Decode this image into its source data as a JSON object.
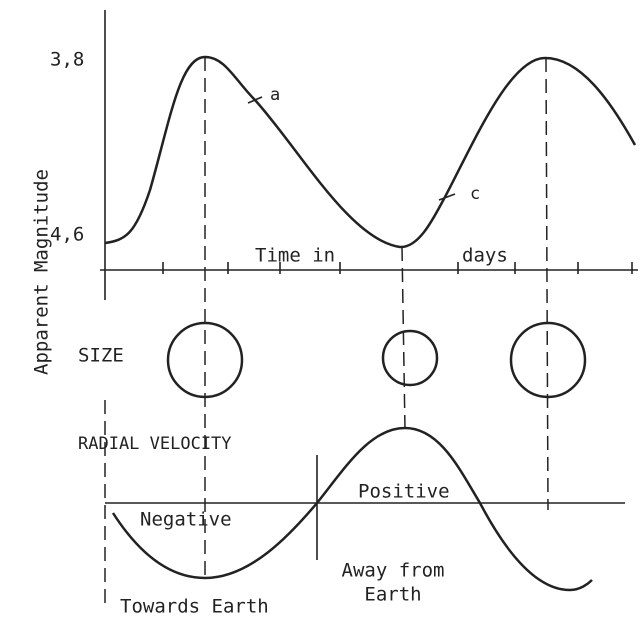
{
  "y_axis_label": "Apparent Magnitude",
  "magnitude_ticks": [
    "3,8",
    "4,6"
  ],
  "time_label": [
    "Time in",
    "days"
  ],
  "points": [
    "a",
    "c"
  ],
  "size_label": "SIZE",
  "velocity_label": "RADIAL VELOCITY",
  "negative_label": "Negative",
  "positive_label": "Positive",
  "towards_label": "Towards Earth",
  "away_label": [
    "Away from",
    "Earth"
  ]
}
